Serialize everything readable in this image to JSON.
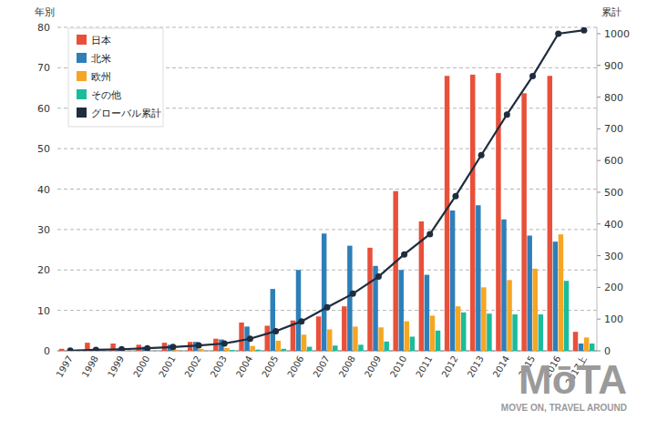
{
  "chart_data": {
    "type": "bar",
    "y_label": "年別",
    "y2_label": "累計",
    "categories": [
      "1997",
      "1998",
      "1999",
      "2000",
      "2001",
      "2002",
      "2003",
      "2004",
      "2005",
      "2006",
      "2007",
      "2008",
      "2009",
      "2010",
      "2011",
      "2012",
      "2013",
      "2014",
      "2015",
      "2016",
      "2017上"
    ],
    "series": [
      {
        "name": "日本",
        "color": "#e8503a",
        "type": "bar",
        "values": [
          0.5,
          2,
          1.8,
          1.5,
          2,
          2.2,
          3,
          7,
          6.2,
          7.5,
          8.5,
          11,
          25.5,
          39.5,
          32,
          68,
          68.3,
          68.7,
          63.7,
          68,
          4.7
        ]
      },
      {
        "name": "北米",
        "color": "#2e7fb8",
        "type": "bar",
        "values": [
          0,
          0.2,
          0.5,
          1,
          1.5,
          2.2,
          2.8,
          6,
          15.3,
          20,
          29,
          26,
          21,
          20,
          18.8,
          34.7,
          36,
          32.5,
          28.5,
          27,
          1.8
        ]
      },
      {
        "name": "欧州",
        "color": "#f5a623",
        "type": "bar",
        "values": [
          0,
          0,
          0,
          0,
          0.3,
          0.5,
          0.7,
          1.2,
          2.5,
          4,
          5.3,
          6,
          5.8,
          7.3,
          8.7,
          11,
          15.7,
          17.5,
          20.3,
          28.8,
          3.3
        ]
      },
      {
        "name": "その他",
        "color": "#1abc9c",
        "type": "bar",
        "values": [
          0,
          0,
          0,
          0,
          0,
          0,
          0.2,
          0.3,
          0.5,
          1,
          1.3,
          1.5,
          2.3,
          3.5,
          5,
          9.5,
          9.2,
          9,
          9,
          17.3,
          1.8
        ]
      },
      {
        "name": "グローバル累計",
        "color": "#1f2d3d",
        "type": "line",
        "axis": "y2",
        "marker": "circle",
        "values": [
          0.5,
          3,
          5,
          8,
          12,
          17,
          23,
          38,
          62,
          93,
          137,
          180,
          234,
          304,
          368,
          488,
          617,
          745,
          866,
          1000,
          1011
        ]
      }
    ],
    "ylim": [
      0,
      80
    ],
    "yticks": [
      0,
      10,
      20,
      30,
      40,
      50,
      60,
      70,
      80
    ],
    "y2lim": [
      0,
      1020
    ],
    "y2ticks": [
      0,
      100,
      200,
      300,
      400,
      500,
      600,
      700,
      800,
      900,
      1000
    ],
    "grid": true,
    "legend": "top-left",
    "annotations": [
      "MōTA",
      "MOVE ON, TRAVEL AROUND"
    ]
  }
}
